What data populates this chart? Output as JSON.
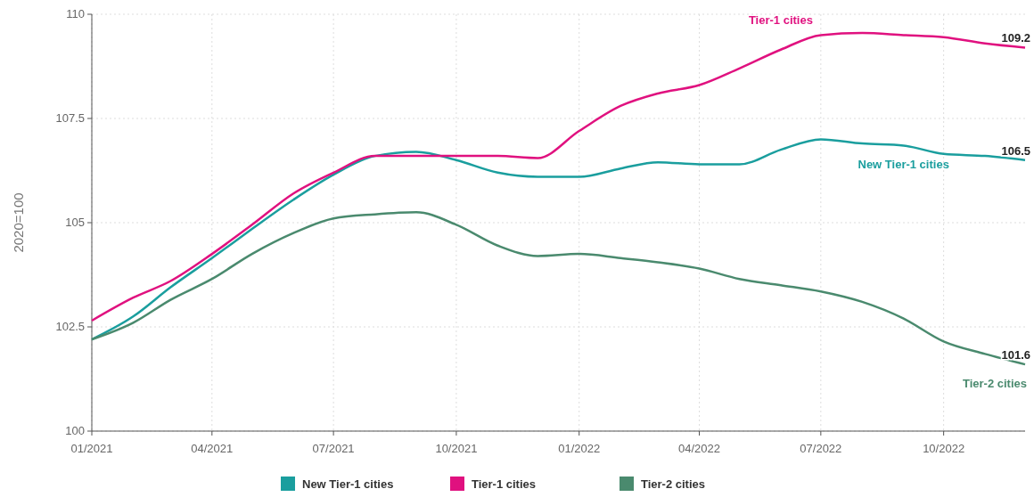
{
  "chart_data": {
    "type": "line",
    "ylabel": "2020=100",
    "x": [
      "2021-01",
      "2021-02",
      "2021-03",
      "2021-04",
      "2021-05",
      "2021-06",
      "2021-07",
      "2021-08",
      "2021-09",
      "2021-10",
      "2021-11",
      "2021-12",
      "2022-01",
      "2022-02",
      "2022-03",
      "2022-04",
      "2022-05",
      "2022-06",
      "2022-07",
      "2022-08",
      "2022-09",
      "2022-10",
      "2022-11",
      "2022-12"
    ],
    "series": [
      {
        "name": "New Tier-1 cities",
        "color": "#1a9e9e",
        "values": [
          102.2,
          102.75,
          103.45,
          104.15,
          104.85,
          105.55,
          106.15,
          106.6,
          106.7,
          106.5,
          106.2,
          106.1,
          106.1,
          106.3,
          106.45,
          106.4,
          106.4,
          106.75,
          107.0,
          106.9,
          106.85,
          106.65,
          106.6,
          106.5
        ],
        "value_labels": [
          null,
          null,
          null,
          null,
          null,
          null,
          null,
          null,
          null,
          null,
          null,
          null,
          null,
          null,
          null,
          null,
          null,
          null,
          null,
          null,
          null,
          null,
          null,
          "106.5"
        ]
      },
      {
        "name": "Tier-1 cities",
        "color": "#e0117f",
        "values": [
          102.65,
          103.2,
          103.6,
          104.25,
          104.95,
          105.7,
          106.2,
          106.6,
          106.6,
          106.6,
          106.6,
          106.55,
          107.2,
          107.8,
          108.1,
          108.3,
          108.7,
          109.15,
          109.5,
          109.55,
          109.5,
          109.45,
          109.3,
          109.2
        ],
        "value_labels": [
          null,
          null,
          null,
          null,
          null,
          null,
          null,
          null,
          null,
          null,
          null,
          null,
          null,
          null,
          null,
          null,
          null,
          null,
          null,
          null,
          null,
          null,
          null,
          "109.2"
        ]
      },
      {
        "name": "Tier-2 cities",
        "color": "#4a8a6e",
        "values": [
          102.2,
          102.6,
          103.15,
          103.65,
          104.25,
          104.75,
          105.1,
          105.2,
          105.25,
          104.95,
          104.45,
          104.2,
          104.25,
          104.15,
          104.05,
          103.9,
          103.65,
          103.5,
          103.35,
          103.1,
          102.7,
          102.15,
          101.85,
          101.6
        ],
        "value_labels": [
          null,
          null,
          null,
          null,
          null,
          null,
          null,
          null,
          null,
          null,
          null,
          null,
          null,
          null,
          null,
          null,
          null,
          null,
          null,
          null,
          null,
          null,
          null,
          "101.6"
        ]
      }
    ],
    "xlim": [
      "2021-01",
      "2022-12"
    ],
    "xticks": [
      {
        "value": "2021-01",
        "label": "01/2021"
      },
      {
        "value": "2021-04",
        "label": "04/2021"
      },
      {
        "value": "2021-07",
        "label": "07/2021"
      },
      {
        "value": "2021-10",
        "label": "10/2021"
      },
      {
        "value": "2022-01",
        "label": "01/2022"
      },
      {
        "value": "2022-04",
        "label": "04/2022"
      },
      {
        "value": "2022-07",
        "label": "07/2022"
      },
      {
        "value": "2022-10",
        "label": "10/2022"
      }
    ],
    "ylim": [
      100,
      110
    ],
    "yticks": [
      100,
      102.5,
      105,
      107.5,
      110
    ],
    "grid": true,
    "legend": "bottom",
    "marker": "none",
    "line_style": "solid"
  }
}
